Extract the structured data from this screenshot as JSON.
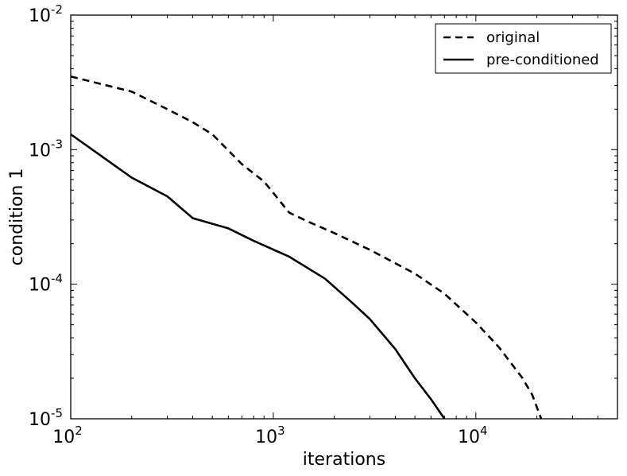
{
  "chart_data": {
    "type": "line",
    "title": "",
    "xlabel": "iterations",
    "ylabel": "condition 1",
    "xscale": "log",
    "yscale": "log",
    "xlim": [
      100,
      50000
    ],
    "ylim": [
      1e-05,
      0.01
    ],
    "x_ticks": [
      {
        "value": 100,
        "mantissa": "10",
        "exp": "2"
      },
      {
        "value": 1000,
        "mantissa": "10",
        "exp": "3"
      },
      {
        "value": 10000,
        "mantissa": "10",
        "exp": "4"
      }
    ],
    "y_ticks": [
      {
        "value": 1e-05,
        "mantissa": "10",
        "exp": "-5"
      },
      {
        "value": 0.0001,
        "mantissa": "10",
        "exp": "-4"
      },
      {
        "value": 0.001,
        "mantissa": "10",
        "exp": "-3"
      },
      {
        "value": 0.01,
        "mantissa": "10",
        "exp": "-2"
      }
    ],
    "grid": false,
    "legend_position": "top-right",
    "series": [
      {
        "name": "original",
        "style": "dashed",
        "color": "#000000",
        "points": [
          [
            100,
            0.0035
          ],
          [
            200,
            0.0027
          ],
          [
            300,
            0.002
          ],
          [
            400,
            0.0016
          ],
          [
            500,
            0.0013
          ],
          [
            700,
            0.00078
          ],
          [
            900,
            0.00058
          ],
          [
            1200,
            0.00034
          ],
          [
            1500,
            0.00029
          ],
          [
            2000,
            0.00024
          ],
          [
            3000,
            0.00018
          ],
          [
            5000,
            0.00012
          ],
          [
            7000,
            8.5e-05
          ],
          [
            10000,
            5.2e-05
          ],
          [
            13000,
            3.4e-05
          ],
          [
            17000,
            2e-05
          ],
          [
            19000,
            1.5e-05
          ],
          [
            21000,
            1e-05
          ]
        ]
      },
      {
        "name": "pre-conditioned",
        "style": "solid",
        "color": "#000000",
        "points": [
          [
            100,
            0.0013
          ],
          [
            200,
            0.00062
          ],
          [
            300,
            0.00045
          ],
          [
            400,
            0.00031
          ],
          [
            600,
            0.00026
          ],
          [
            800,
            0.00021
          ],
          [
            1200,
            0.00016
          ],
          [
            1800,
            0.00011
          ],
          [
            2400,
            7.5e-05
          ],
          [
            3000,
            5.5e-05
          ],
          [
            4000,
            3.3e-05
          ],
          [
            5000,
            2e-05
          ],
          [
            6000,
            1.4e-05
          ],
          [
            7000,
            1e-05
          ]
        ]
      }
    ]
  }
}
